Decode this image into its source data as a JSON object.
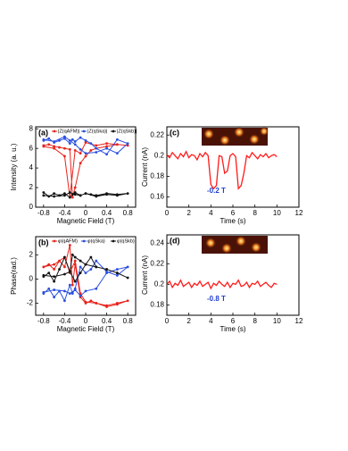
{
  "chart_data": [
    {
      "type": "line",
      "panel_label": "(a)",
      "xlabel": "Magnetic Field (T)",
      "ylabel": "Intensity (a. u.)",
      "xlim": [
        -0.95,
        0.95
      ],
      "xticks": [
        -0.8,
        -0.4,
        0,
        0.4,
        0.8
      ],
      "ylim": [
        0,
        8.2
      ],
      "yticks": [
        0,
        2,
        4,
        6,
        8
      ],
      "markers": true,
      "series": [
        {
          "name": "|Z(qAFM)|",
          "color": "#e8231c",
          "x": [
            -0.8,
            -0.7,
            -0.6,
            -0.5,
            -0.4,
            -0.3,
            -0.25,
            -0.2,
            -0.1,
            0,
            0.1,
            0.2,
            0.4,
            0.6,
            0.8,
            0.6,
            0.4,
            0.2,
            0,
            -0.1,
            -0.2,
            -0.3,
            -0.4,
            -0.6,
            -0.8
          ],
          "values": [
            6.3,
            6.4,
            6.2,
            6.1,
            6.0,
            5.9,
            1.0,
            2.0,
            4.5,
            5.2,
            5.8,
            6.0,
            6.2,
            6.4,
            6.3,
            6.4,
            6.5,
            6.3,
            6.6,
            5.5,
            5.8,
            1.0,
            5.2,
            6.0,
            6.2
          ]
        },
        {
          "name": "|Z(qSka)|",
          "color": "#2a4fe0",
          "x": [
            -0.8,
            -0.7,
            -0.6,
            -0.5,
            -0.4,
            -0.3,
            -0.25,
            -0.2,
            -0.1,
            0,
            0.1,
            0.2,
            0.4,
            0.6,
            0.8,
            0.6,
            0.4,
            0.2,
            0,
            -0.1,
            -0.2,
            -0.3,
            -0.4,
            -0.6,
            -0.8
          ],
          "values": [
            6.8,
            7.0,
            6.6,
            6.8,
            7.0,
            6.5,
            6.9,
            6.7,
            7.1,
            6.8,
            6.5,
            6.0,
            5.4,
            6.9,
            6.5,
            5.5,
            6.0,
            5.6,
            5.5,
            5.9,
            6.4,
            6.8,
            7.2,
            6.7,
            6.9
          ]
        },
        {
          "name": "|Z(qSkb)|",
          "color": "#111111",
          "x": [
            -0.8,
            -0.7,
            -0.6,
            -0.5,
            -0.4,
            -0.3,
            -0.25,
            -0.2,
            -0.1,
            0,
            0.1,
            0.2,
            0.4,
            0.6,
            0.8,
            0.6,
            0.4,
            0.2,
            0,
            -0.1,
            -0.2,
            -0.3,
            -0.4,
            -0.6,
            -0.8
          ],
          "values": [
            1.5,
            1.1,
            1.4,
            1.2,
            1.4,
            1.0,
            1.3,
            1.5,
            1.2,
            1.4,
            1.3,
            1.2,
            1.4,
            1.3,
            1.4,
            1.2,
            1.3,
            1.1,
            1.4,
            1.2,
            1.3,
            1.5,
            1.2,
            1.1,
            1.2
          ]
        }
      ]
    },
    {
      "type": "line",
      "panel_label": "(c)",
      "xlabel": "Time (s)",
      "ylabel": "Current (nA)",
      "annotation": "-0.2 T",
      "xlim": [
        0,
        12
      ],
      "xticks": [
        0,
        2,
        4,
        6,
        8,
        10,
        12
      ],
      "ylim": [
        0.15,
        0.228
      ],
      "yticks": [
        0.16,
        0.18,
        0.2,
        0.22
      ],
      "markers": false,
      "x": [
        0,
        0.25,
        0.5,
        0.75,
        1,
        1.25,
        1.5,
        1.75,
        2,
        2.25,
        2.5,
        2.75,
        3,
        3.25,
        3.5,
        3.75,
        4,
        4.25,
        4.5,
        4.75,
        5,
        5.25,
        5.5,
        5.75,
        6,
        6.25,
        6.5,
        6.75,
        7,
        7.25,
        7.5,
        7.75,
        8,
        8.25,
        8.5,
        8.75,
        9,
        9.25,
        9.5,
        9.75,
        10
      ],
      "series": [
        {
          "color": "#ff1a1a",
          "values": [
            0.201,
            0.198,
            0.203,
            0.2,
            0.197,
            0.202,
            0.199,
            0.204,
            0.198,
            0.201,
            0.2,
            0.196,
            0.202,
            0.199,
            0.203,
            0.2,
            0.172,
            0.168,
            0.171,
            0.2,
            0.199,
            0.183,
            0.185,
            0.2,
            0.202,
            0.199,
            0.168,
            0.171,
            0.183,
            0.2,
            0.198,
            0.203,
            0.2,
            0.197,
            0.201,
            0.199,
            0.202,
            0.198,
            0.2,
            0.201,
            0.199
          ]
        }
      ]
    },
    {
      "type": "line",
      "panel_label": "(b)",
      "xlabel": "Magnetic Field (T)",
      "ylabel": "Phase(rad.)",
      "xlim": [
        -0.95,
        0.95
      ],
      "xticks": [
        -0.8,
        -0.4,
        0,
        0.4,
        0.8
      ],
      "ylim": [
        -3,
        3.5
      ],
      "yticks": [
        -2,
        0,
        2
      ],
      "markers": true,
      "series": [
        {
          "name": "φ(qAFM)",
          "color": "#e8231c",
          "x": [
            -0.8,
            -0.7,
            -0.6,
            -0.5,
            -0.4,
            -0.3,
            -0.25,
            -0.2,
            -0.1,
            0,
            0.1,
            0.2,
            0.4,
            0.6,
            0.8,
            0.6,
            0.4,
            0.2,
            0,
            -0.1,
            -0.2,
            -0.3,
            -0.4,
            -0.6,
            -0.8
          ],
          "values": [
            1.0,
            1.2,
            0.8,
            1.5,
            1.0,
            2.8,
            -0.5,
            1.2,
            -1.5,
            -2.0,
            -1.8,
            -2.0,
            -2.2,
            -2.0,
            -1.8,
            -2.1,
            -2.3,
            -2.0,
            -1.9,
            -1.2,
            1.5,
            0.5,
            1.8,
            1.2,
            1.0
          ]
        },
        {
          "name": "φ(qSka)",
          "color": "#2a4fe0",
          "x": [
            -0.8,
            -0.7,
            -0.6,
            -0.5,
            -0.4,
            -0.3,
            -0.25,
            -0.2,
            -0.1,
            0,
            0.1,
            0.2,
            0.4,
            0.6,
            0.8,
            0.6,
            0.4,
            0.2,
            0,
            -0.1,
            -0.2,
            -0.3,
            -0.4,
            -0.6,
            -0.8
          ],
          "values": [
            -1.2,
            -0.8,
            -1.5,
            -1.0,
            -1.8,
            -0.5,
            -1.2,
            -0.8,
            1.0,
            0.5,
            0.8,
            1.5,
            0.6,
            0.3,
            1.0,
            0.8,
            0.5,
            -0.8,
            -1.0,
            -1.4,
            -0.9,
            -1.2,
            -1.0,
            -0.9,
            -1.1
          ]
        },
        {
          "name": "φ(qSkb)",
          "color": "#111111",
          "x": [
            -0.8,
            -0.7,
            -0.6,
            -0.5,
            -0.4,
            -0.3,
            -0.25,
            -0.2,
            -0.1,
            0,
            0.1,
            0.2,
            0.4,
            0.6,
            0.8,
            0.6,
            0.4,
            0.2,
            0,
            -0.1,
            -0.2,
            -0.3,
            -0.4,
            -0.6,
            -0.8
          ],
          "values": [
            0.2,
            0.5,
            -0.2,
            0.8,
            1.8,
            0.6,
            2.0,
            1.8,
            1.5,
            1.2,
            1.8,
            1.0,
            0.8,
            0.5,
            0.1,
            0.5,
            0.8,
            1.0,
            1.2,
            0.5,
            -0.2,
            0.6,
            0.4,
            0.2,
            0.3
          ]
        }
      ]
    },
    {
      "type": "line",
      "panel_label": "(d)",
      "xlabel": "Time (s)",
      "ylabel": "Current (nA)",
      "annotation": "-0.8 T",
      "xlim": [
        0,
        12
      ],
      "xticks": [
        0,
        2,
        4,
        6,
        8,
        10,
        12
      ],
      "ylim": [
        0.17,
        0.248
      ],
      "yticks": [
        0.18,
        0.2,
        0.22,
        0.24
      ],
      "markers": false,
      "x": [
        0,
        0.25,
        0.5,
        0.75,
        1,
        1.25,
        1.5,
        1.75,
        2,
        2.25,
        2.5,
        2.75,
        3,
        3.25,
        3.5,
        3.75,
        4,
        4.25,
        4.5,
        4.75,
        5,
        5.25,
        5.5,
        5.75,
        6,
        6.25,
        6.5,
        6.75,
        7,
        7.25,
        7.5,
        7.75,
        8,
        8.25,
        8.5,
        8.75,
        9,
        9.25,
        9.5,
        9.75,
        10
      ],
      "series": [
        {
          "color": "#ff1a1a",
          "values": [
            0.2,
            0.203,
            0.197,
            0.201,
            0.199,
            0.204,
            0.198,
            0.2,
            0.202,
            0.197,
            0.201,
            0.199,
            0.203,
            0.198,
            0.2,
            0.202,
            0.196,
            0.201,
            0.199,
            0.203,
            0.2,
            0.198,
            0.202,
            0.197,
            0.201,
            0.2,
            0.204,
            0.198,
            0.199,
            0.202,
            0.197,
            0.201,
            0.2,
            0.203,
            0.198,
            0.2,
            0.202,
            0.199,
            0.197,
            0.201,
            0.2
          ]
        }
      ]
    }
  ]
}
